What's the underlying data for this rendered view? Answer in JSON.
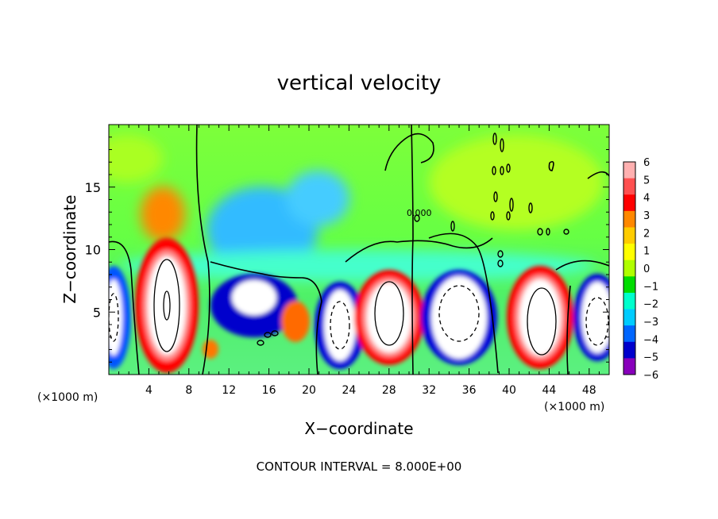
{
  "chart_data": {
    "type": "heatmap",
    "title": "vertical velocity",
    "xlabel": "X−coordinate",
    "ylabel": "Z−coordinate",
    "x_unit_left": "(×1000 m)",
    "x_unit_right": "(×1000 m)",
    "footer": "CONTOUR INTERVAL = 8.000E+00",
    "xlim": [
      0,
      50
    ],
    "ylim": [
      0,
      20
    ],
    "x_ticks": [
      4,
      8,
      12,
      16,
      20,
      24,
      28,
      32,
      36,
      40,
      44,
      48
    ],
    "y_ticks": [
      5,
      10,
      15
    ],
    "colorbar": {
      "min": -6,
      "max": 6,
      "ticks": [
        "6",
        "5",
        "4",
        "3",
        "2",
        "1",
        "0",
        "−1",
        "−2",
        "−3",
        "−4",
        "−5",
        "−6"
      ],
      "colors": [
        "#ffb0b0",
        "#ff5050",
        "#ff0000",
        "#ff8800",
        "#ffcc00",
        "#ffff00",
        "#b0ff00",
        "#00dd00",
        "#00ffcc",
        "#00ccff",
        "#0066ff",
        "#0000cc",
        "#8800bb"
      ]
    },
    "contour_labels": [
      "0.000"
    ],
    "features": [
      {
        "kind": "updraft",
        "x": 6,
        "z": 6
      },
      {
        "kind": "downdraft",
        "x": 1,
        "z": 4
      },
      {
        "kind": "downdraft",
        "x": 14,
        "z": 6
      },
      {
        "kind": "downdraft",
        "x": 22,
        "z": 4
      },
      {
        "kind": "updraft",
        "x": 28,
        "z": 5
      },
      {
        "kind": "downdraft",
        "x": 34,
        "z": 5
      },
      {
        "kind": "updraft",
        "x": 42,
        "z": 5
      },
      {
        "kind": "downdraft",
        "x": 48,
        "z": 4
      }
    ]
  }
}
